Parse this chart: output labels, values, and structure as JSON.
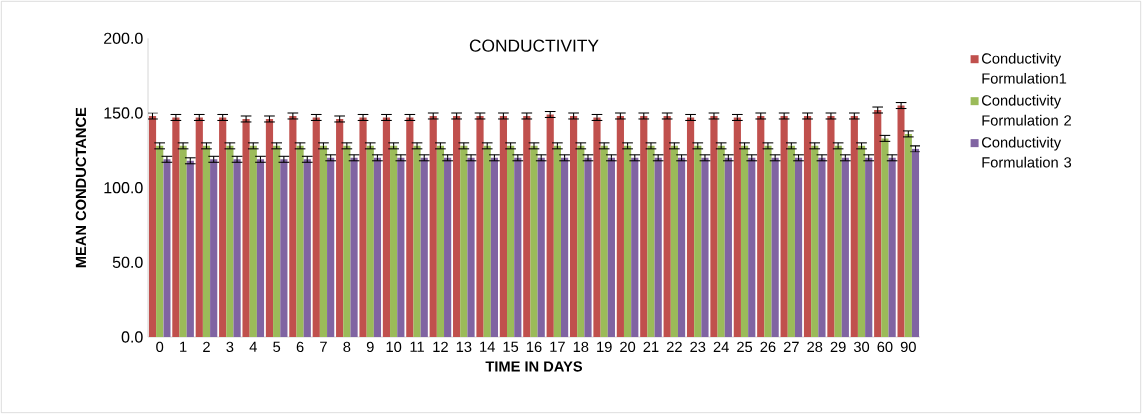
{
  "chart_data": {
    "type": "bar",
    "title": "CONDUCTIVITY",
    "xlabel": "TIME IN DAYS",
    "ylabel": "MEAN  CONDUCTANCE",
    "categories": [
      "0",
      "1",
      "2",
      "3",
      "4",
      "5",
      "6",
      "7",
      "8",
      "9",
      "10",
      "11",
      "12",
      "13",
      "14",
      "15",
      "16",
      "17",
      "18",
      "19",
      "20",
      "21",
      "22",
      "23",
      "24",
      "25",
      "26",
      "27",
      "28",
      "29",
      "30",
      "60",
      "90"
    ],
    "series": [
      {
        "name": "Conductivity Formulation1",
        "color": "#c0504d",
        "values": [
          148,
          147,
          147,
          147,
          146,
          146,
          148,
          147,
          146,
          147,
          147,
          147,
          148,
          148,
          148,
          148,
          148,
          149,
          148,
          147,
          148,
          148,
          148,
          147,
          148,
          147,
          148,
          148,
          148,
          148,
          148,
          152,
          155
        ],
        "errors": [
          2,
          2,
          2,
          2,
          2,
          2,
          2,
          2,
          2,
          2,
          2,
          2,
          2,
          2,
          2,
          2,
          2,
          2,
          2,
          2,
          2,
          2,
          2,
          2,
          2,
          2,
          2,
          2,
          2,
          2,
          2,
          2,
          2
        ]
      },
      {
        "name": "Conductivity Formulation 2",
        "color": "#9bbb59",
        "values": [
          128,
          128,
          128,
          128,
          128,
          128,
          128,
          128,
          128,
          128,
          128,
          128,
          128,
          128,
          128,
          128,
          128,
          128,
          128,
          128,
          128,
          128,
          128,
          128,
          128,
          128,
          128,
          128,
          128,
          128,
          128,
          133,
          136
        ],
        "errors": [
          2,
          2,
          2,
          2,
          2,
          2,
          2,
          2,
          2,
          2,
          2,
          2,
          2,
          2,
          2,
          2,
          2,
          2,
          2,
          2,
          2,
          2,
          2,
          2,
          2,
          2,
          2,
          2,
          2,
          2,
          2,
          2,
          2
        ]
      },
      {
        "name": "Conductivity Formulation 3",
        "color": "#8064a2",
        "values": [
          119,
          118,
          119,
          119,
          119,
          119,
          119,
          120,
          120,
          120,
          120,
          120,
          120,
          120,
          120,
          120,
          120,
          120,
          120,
          120,
          120,
          120,
          120,
          120,
          120,
          120,
          120,
          120,
          120,
          120,
          120,
          120,
          126
        ],
        "errors": [
          2,
          2,
          2,
          2,
          2,
          2,
          2,
          2,
          2,
          2,
          2,
          2,
          2,
          2,
          2,
          2,
          2,
          2,
          2,
          2,
          2,
          2,
          2,
          2,
          2,
          2,
          2,
          2,
          2,
          2,
          2,
          2,
          2
        ]
      }
    ],
    "ylim": [
      0,
      200
    ],
    "yticks": [
      {
        "value": 0,
        "label": "0.0"
      },
      {
        "value": 50,
        "label": "50.0"
      },
      {
        "value": 100,
        "label": "100.0"
      },
      {
        "value": 150,
        "label": "150.0"
      },
      {
        "value": 200,
        "label": "200.0"
      }
    ],
    "legend": "right"
  }
}
